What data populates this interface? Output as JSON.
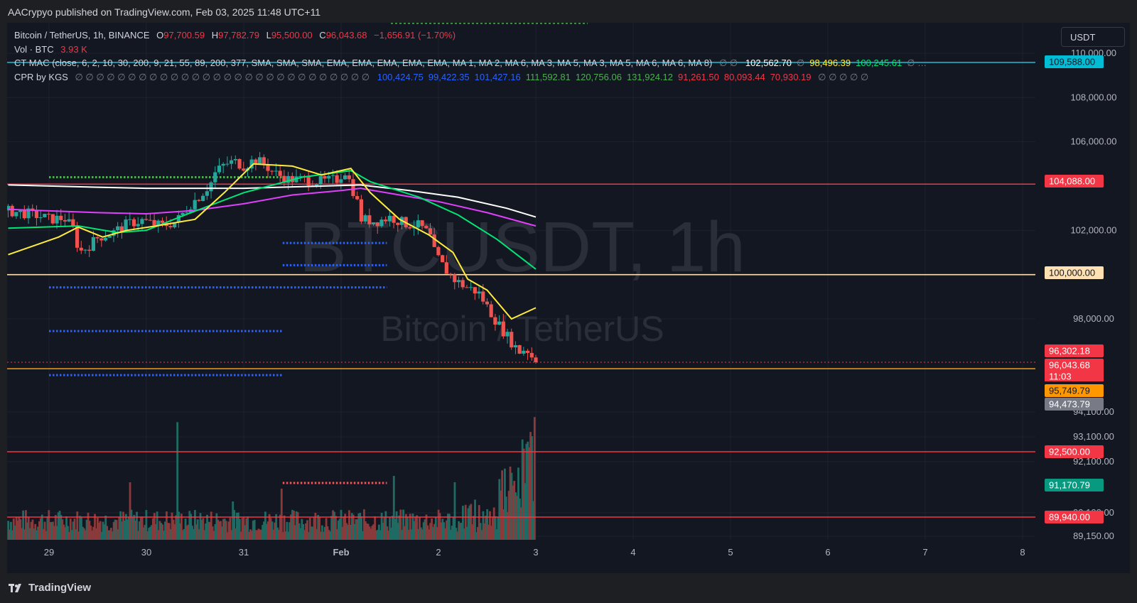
{
  "header": {
    "published_text": "AACrypyo published on TradingView.com, Feb 03, 2025 11:48 UTC+11"
  },
  "legend": {
    "symbol": "Bitcoin / TetherUS, 1h, BINANCE",
    "o_label": "O",
    "o_value": "97,700.59",
    "h_label": "H",
    "h_value": "97,782.79",
    "l_label": "L",
    "l_value": "95,500.00",
    "c_label": "C",
    "c_value": "96,043.68",
    "change": "−1,656.91 (−1.70%)",
    "vol_label": "Vol · BTC",
    "vol_value": "3.93 K",
    "ctmac_label": "CT MAC (close, 6, 2, 10, 30, 200, 9, 21, 55, 89, 200, 377, SMA, SMA, SMA, EMA, EMA, EMA, EMA, EMA, MA 1, MA 2, MA 6, MA 3, MA 5, MA 3, MA 5, MA 6, MA 6, MA 8)",
    "ctmac_nulls": "∅ ∅",
    "ctmac_values": [
      {
        "text": "102,562.70",
        "color": "#ffffff"
      },
      {
        "text": "∅",
        "color": "#787b86"
      },
      {
        "text": "98,496.39",
        "color": "#ffeb3b"
      },
      {
        "text": "100,245.61",
        "color": "#00e676"
      },
      {
        "text": "∅ …",
        "color": "#787b86"
      }
    ],
    "cpr_label": "CPR by KGS",
    "cpr_nulls": "∅ ∅ ∅ ∅ ∅ ∅ ∅ ∅ ∅ ∅ ∅ ∅ ∅ ∅ ∅ ∅ ∅ ∅ ∅ ∅ ∅ ∅ ∅ ∅ ∅ ∅ ∅ ∅",
    "cpr_values": [
      {
        "text": "100,424.75",
        "color": "#2962ff"
      },
      {
        "text": "99,422.35",
        "color": "#2962ff"
      },
      {
        "text": "101,427.16",
        "color": "#2962ff"
      },
      {
        "text": "111,592.81",
        "color": "#4caf50"
      },
      {
        "text": "120,756.06",
        "color": "#4caf50"
      },
      {
        "text": "131,924.12",
        "color": "#4caf50"
      },
      {
        "text": "91,261.50",
        "color": "#f23645"
      },
      {
        "text": "80,093.44",
        "color": "#f23645"
      },
      {
        "text": "70,930.19",
        "color": "#f23645"
      }
    ],
    "cpr_tail": "∅ ∅ ∅ ∅ ∅"
  },
  "currency_button": "USDT",
  "watermark": {
    "ticker": "BTCUSDT, 1h",
    "name": "Bitcoin / TetherUS"
  },
  "footer": {
    "brand": "TradingView"
  },
  "colors": {
    "bg": "#131722",
    "up": "#26a69a",
    "down": "#ef5350",
    "vol_up": "#1f6b63",
    "vol_down": "#8a3a3a",
    "ma_white": "#ffffff",
    "ma_yellow": "#ffeb3b",
    "ma_green": "#00e676",
    "ma_purple": "#e040fb",
    "cpr_blue": "#2962ff",
    "cpr_green": "#4caf50",
    "cpr_red": "#ff5252",
    "line_red": "#f23645",
    "line_orange": "#ffb74d",
    "line_cyan": "#00bcd4"
  },
  "chart_data": {
    "type": "candlestick",
    "price_axis": {
      "ticks": [
        "110,000.00",
        "108,000.00",
        "106,000.00",
        "102,000.00",
        "98,000.00",
        "94,100.00",
        "93,100.00",
        "92,100.00",
        "90,100.00",
        "89,150.00"
      ],
      "tick_values": [
        110000,
        108000,
        106000,
        102000,
        98000,
        94100,
        93100,
        92100,
        90100,
        89150
      ]
    },
    "time_axis": {
      "labels": [
        "29",
        "30",
        "31",
        "Feb",
        "2",
        "3",
        "4",
        "5",
        "6",
        "7",
        "8"
      ],
      "bold": [
        false,
        false,
        false,
        true,
        false,
        false,
        false,
        false,
        false,
        false,
        false
      ]
    },
    "price_labels": [
      {
        "text": "109,588.00",
        "value": 109588,
        "bg": "#00bcd4",
        "fg": "#131722"
      },
      {
        "text": "104,088.00",
        "value": 104088,
        "bg": "#f23645",
        "fg": "#ffffff"
      },
      {
        "text": "100,000.00",
        "value": 100000,
        "bg": "#ffe0b2",
        "fg": "#131722"
      },
      {
        "text": "96,302.18",
        "value": 96302.18,
        "bg": "#f23645",
        "fg": "#ffffff"
      },
      {
        "text": "96,043.68",
        "value": 96043.68,
        "bg": "#f23645",
        "fg": "#ffffff"
      },
      {
        "text": "11:03",
        "value": null,
        "bg": "#f23645",
        "fg": "#ffffff"
      },
      {
        "text": "95,749.79",
        "value": 95749.79,
        "bg": "#ff9800",
        "fg": "#131722"
      },
      {
        "text": "94,473.79",
        "value": 94473.79,
        "bg": "#787b86",
        "fg": "#ffffff"
      },
      {
        "text": "92,500.00",
        "value": 92500,
        "bg": "#f23645",
        "fg": "#ffffff"
      },
      {
        "text": "91,170.79",
        "value": 91170.79,
        "bg": "#089981",
        "fg": "#ffffff"
      },
      {
        "text": "89,940.00",
        "value": 89940,
        "bg": "#f23645",
        "fg": "#ffffff"
      }
    ],
    "horizontal_lines": [
      {
        "value": 109588,
        "color": "#00bcd4"
      },
      {
        "value": 104088,
        "color": "#f23645"
      },
      {
        "value": 100000,
        "color": "#ffe0b2"
      },
      {
        "value": 95749.79,
        "color": "#ff9800"
      },
      {
        "value": 92500,
        "color": "#f23645"
      },
      {
        "value": 89940,
        "color": "#f23645"
      }
    ],
    "cpr_levels": [
      {
        "value": 104400,
        "color": "#4caf50",
        "from_day": 0,
        "to_day": 2.4
      },
      {
        "value": 101427.16,
        "color": "#2962ff",
        "from_day": 2.4,
        "to_day": 3.47
      },
      {
        "value": 100424.75,
        "color": "#2962ff",
        "from_day": 2.4,
        "to_day": 3.47
      },
      {
        "value": 99422.35,
        "color": "#2962ff",
        "from_day": 0,
        "to_day": 3.47
      },
      {
        "value": 97450,
        "color": "#2962ff",
        "from_day": 0,
        "to_day": 2.4
      },
      {
        "value": 95460,
        "color": "#2962ff",
        "from_day": 0,
        "to_day": 2.4
      },
      {
        "value": 91261.5,
        "color": "#ff5252",
        "from_day": 2.4,
        "to_day": 3.47
      }
    ],
    "x_range": [
      -0.42,
      10.0
    ],
    "candle_path": [
      [
        -0.42,
        102900
      ],
      [
        -0.25,
        102800
      ],
      [
        -0.1,
        102700
      ],
      [
        0.05,
        102500
      ],
      [
        0.2,
        102550
      ],
      [
        0.3,
        102000
      ],
      [
        0.35,
        101000
      ],
      [
        0.45,
        101300
      ],
      [
        0.55,
        101700
      ],
      [
        0.7,
        101900
      ],
      [
        0.85,
        102300
      ],
      [
        1.0,
        102450
      ],
      [
        1.1,
        102300
      ],
      [
        1.2,
        102200
      ],
      [
        1.35,
        102400
      ],
      [
        1.5,
        103200
      ],
      [
        1.6,
        103600
      ],
      [
        1.7,
        104100
      ],
      [
        1.75,
        104600
      ],
      [
        1.85,
        105000
      ],
      [
        1.95,
        105100
      ],
      [
        2.05,
        104900
      ],
      [
        2.15,
        105200
      ],
      [
        2.25,
        105000
      ],
      [
        2.35,
        104600
      ],
      [
        2.5,
        104300
      ],
      [
        2.65,
        104300
      ],
      [
        2.85,
        104200
      ],
      [
        3.0,
        104300
      ],
      [
        3.08,
        104700
      ],
      [
        3.12,
        104300
      ],
      [
        3.2,
        103400
      ],
      [
        3.25,
        102500
      ],
      [
        3.4,
        102400
      ],
      [
        3.55,
        102600
      ],
      [
        3.7,
        102300
      ],
      [
        3.85,
        102200
      ],
      [
        3.95,
        101800
      ],
      [
        4.0,
        101000
      ],
      [
        4.1,
        100300
      ],
      [
        4.2,
        99800
      ],
      [
        4.3,
        99500
      ],
      [
        4.45,
        99200
      ],
      [
        4.55,
        98500
      ],
      [
        4.65,
        97800
      ],
      [
        4.75,
        97200
      ],
      [
        4.82,
        96800
      ],
      [
        4.88,
        96500
      ],
      [
        4.94,
        96700
      ],
      [
        5.0,
        96300
      ]
    ],
    "ma_lines": {
      "white": [
        [
          -0.42,
          104050
        ],
        [
          0.5,
          103950
        ],
        [
          1.0,
          103900
        ],
        [
          2.0,
          103900
        ],
        [
          2.8,
          104000
        ],
        [
          3.2,
          104050
        ],
        [
          3.7,
          103800
        ],
        [
          4.2,
          103500
        ],
        [
          4.7,
          103000
        ],
        [
          5.0,
          102600
        ]
      ],
      "purple": [
        [
          -0.42,
          102950
        ],
        [
          0.5,
          102800
        ],
        [
          1.0,
          102750
        ],
        [
          1.5,
          102900
        ],
        [
          2.0,
          103200
        ],
        [
          2.5,
          103600
        ],
        [
          3.0,
          103800
        ],
        [
          3.2,
          103900
        ],
        [
          3.6,
          103600
        ],
        [
          4.0,
          103300
        ],
        [
          4.5,
          102800
        ],
        [
          5.0,
          102200
        ]
      ],
      "green": [
        [
          -0.42,
          102100
        ],
        [
          0.3,
          102200
        ],
        [
          0.7,
          101900
        ],
        [
          1.0,
          102000
        ],
        [
          1.4,
          102700
        ],
        [
          2.0,
          103700
        ],
        [
          2.6,
          104400
        ],
        [
          3.1,
          104700
        ],
        [
          3.3,
          104200
        ],
        [
          3.8,
          103500
        ],
        [
          4.2,
          102700
        ],
        [
          4.6,
          101600
        ],
        [
          5.0,
          100250
        ]
      ],
      "yellow": [
        [
          -0.42,
          100900
        ],
        [
          0.1,
          101700
        ],
        [
          0.3,
          102150
        ],
        [
          0.55,
          101700
        ],
        [
          0.8,
          102000
        ],
        [
          1.1,
          102200
        ],
        [
          1.5,
          102500
        ],
        [
          1.8,
          103700
        ],
        [
          2.1,
          105000
        ],
        [
          2.5,
          104900
        ],
        [
          2.8,
          104500
        ],
        [
          3.1,
          104800
        ],
        [
          3.3,
          103700
        ],
        [
          3.6,
          102500
        ],
        [
          3.9,
          101800
        ],
        [
          4.15,
          101000
        ],
        [
          4.3,
          99800
        ],
        [
          4.5,
          99300
        ],
        [
          4.75,
          98000
        ],
        [
          5.0,
          98500
        ]
      ]
    },
    "volume": {
      "note": "1h volume bars; heights relative to the tallest bar",
      "max_relative": 1.0
    }
  }
}
